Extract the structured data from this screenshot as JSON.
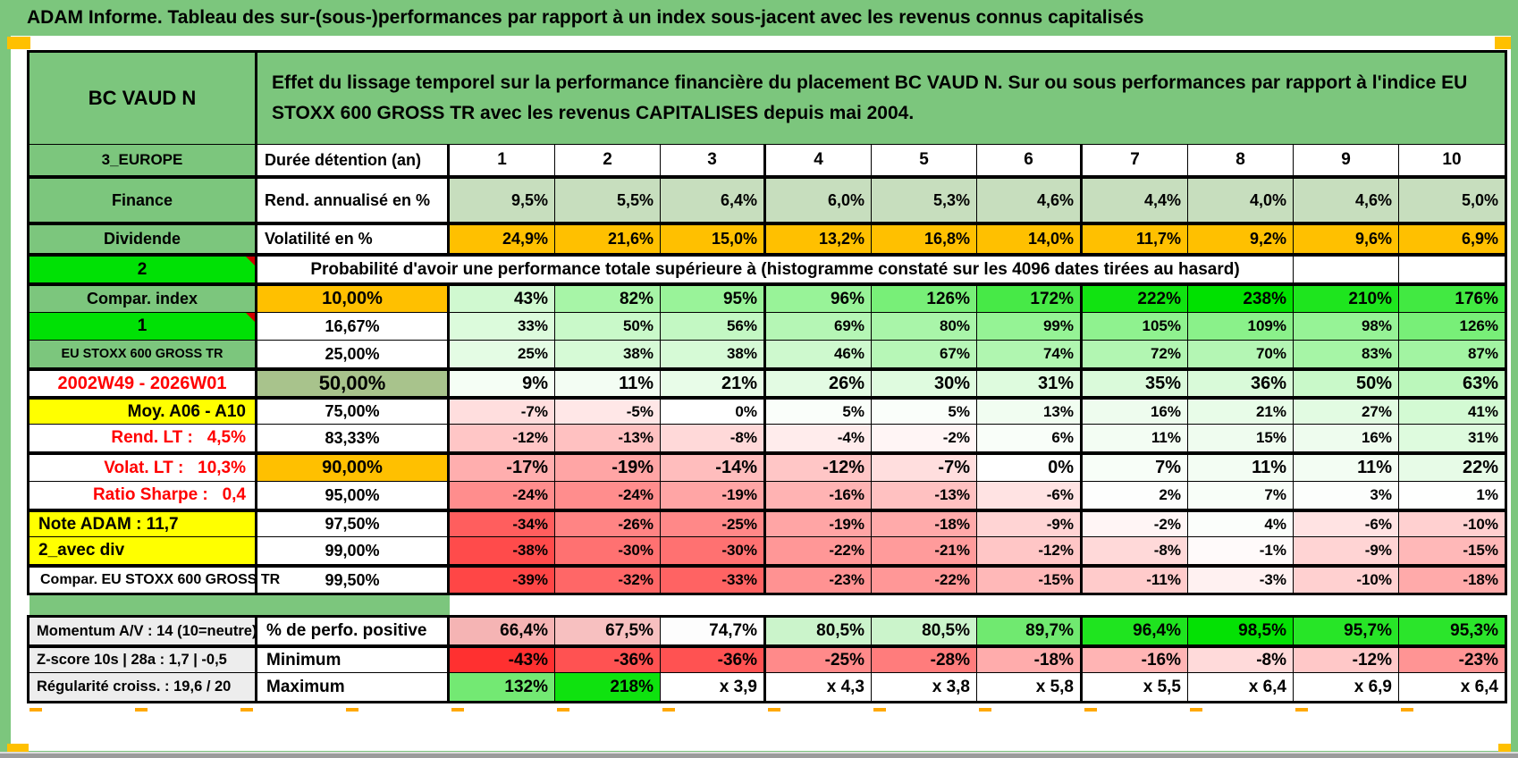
{
  "app": {
    "title": "ADAM Informe. Tableau des sur-(sous-)performances par rapport à un index sous-jacent avec les revenus connus capitalisés"
  },
  "colors": {
    "frame_green": "#7CC67D",
    "bright_green": "#00E105",
    "orange": "#FFC000",
    "yellow": "#FFFF00",
    "sage_green": "#A8C38C",
    "rend_row_green": "#C7DEBE",
    "label_gray": "#EDEDED",
    "red_text": "#FF0000",
    "comment_marker": "#D00000",
    "pagebreak_orange": "#FFA800"
  },
  "sheet": {
    "fund_name": "BC VAUD N",
    "description": "Effet du lissage temporel sur la performance financière du placement BC VAUD N. Sur ou sous performances par rapport à l'indice EU STOXX 600 GROSS TR avec les revenus CAPITALISES depuis mai 2004.",
    "columns": [
      "1",
      "2",
      "3",
      "4",
      "5",
      "6",
      "7",
      "8",
      "9",
      "10"
    ],
    "rows": [
      {
        "id": "duration",
        "a": {
          "t": "3_EUROPE",
          "bg": "#7CC67D"
        },
        "b": {
          "t": "Durée détention (an)",
          "align": "left"
        },
        "values": [
          "1",
          "2",
          "3",
          "4",
          "5",
          "6",
          "7",
          "8",
          "9",
          "10"
        ],
        "bgs": [
          "#FFFFFF",
          "#FFFFFF",
          "#FFFFFF",
          "#FFFFFF",
          "#FFFFFF",
          "#FFFFFF",
          "#FFFFFF",
          "#FFFFFF",
          "#FFFFFF",
          "#FFFFFF"
        ]
      },
      {
        "id": "rend",
        "tt": true,
        "a": {
          "t": "Finance",
          "bg": "#7CC67D"
        },
        "b": {
          "t": "Rend. annualisé en %",
          "align": "left"
        },
        "values": [
          "9,5%",
          "5,5%",
          "6,4%",
          "6,0%",
          "5,3%",
          "4,6%",
          "4,4%",
          "4,0%",
          "4,6%",
          "5,0%"
        ],
        "bgs": [
          "#C7DEBE",
          "#C7DEBE",
          "#C7DEBE",
          "#C7DEBE",
          "#C7DEBE",
          "#C7DEBE",
          "#C7DEBE",
          "#C7DEBE",
          "#C7DEBE",
          "#C7DEBE"
        ]
      },
      {
        "id": "volat",
        "tt": true,
        "a": {
          "t": "Dividende",
          "bg": "#7CC67D"
        },
        "b": {
          "t": "Volatilité en %",
          "align": "left"
        },
        "values": [
          "24,9%",
          "21,6%",
          "15,0%",
          "13,2%",
          "16,8%",
          "14,0%",
          "11,7%",
          "9,2%",
          "9,6%",
          "6,9%"
        ],
        "bgs": [
          "#FFC000",
          "#FFC000",
          "#FFC000",
          "#FFC000",
          "#FFC000",
          "#FFC000",
          "#FFC000",
          "#FFC000",
          "#FFC000",
          "#FFC000"
        ]
      },
      {
        "id": "proba",
        "type": "span8",
        "tt": true,
        "a": {
          "t": "2",
          "bg": "#00E105",
          "corner": true
        },
        "span": {
          "t": "Probabilité d'avoir une performance totale supérieure à (histogramme constaté sur les 4096 dates tirées au hasard)"
        }
      },
      {
        "id": "p10",
        "tt": true,
        "a": {
          "t": "Compar. index",
          "bg": "#7CC67D"
        },
        "b": {
          "t": "10,00%",
          "bg": "#FFC000"
        },
        "values": [
          "43%",
          "82%",
          "95%",
          "96%",
          "126%",
          "172%",
          "222%",
          "238%",
          "210%",
          "176%"
        ],
        "bgs": [
          "#D0F9D0",
          "#A7F5A7",
          "#99F399",
          "#98F398",
          "#78EF78",
          "#47E947",
          "#11E311",
          "#00E100",
          "#1EE51E",
          "#42E942"
        ]
      },
      {
        "id": "p16",
        "a": {
          "t": "1",
          "bg": "#00E105",
          "corner": true
        },
        "b": {
          "t": "16,67%"
        },
        "values": [
          "33%",
          "50%",
          "56%",
          "69%",
          "80%",
          "99%",
          "105%",
          "109%",
          "98%",
          "126%"
        ],
        "bgs": [
          "#DCFBDC",
          "#C9F9C9",
          "#C3F8C3",
          "#B5F6B5",
          "#A9F5A9",
          "#95F395",
          "#8FF28F",
          "#8AF18A",
          "#96F396",
          "#78EF78"
        ]
      },
      {
        "id": "p25",
        "a": {
          "t": "EU STOXX 600 GROSS TR",
          "bg": "#7CC67D"
        },
        "b": {
          "t": "25,00%"
        },
        "values": [
          "25%",
          "38%",
          "38%",
          "46%",
          "67%",
          "74%",
          "72%",
          "70%",
          "83%",
          "87%"
        ],
        "bgs": [
          "#E4FCE4",
          "#D6FAD6",
          "#D6FAD6",
          "#CEF9CE",
          "#B7F7B7",
          "#B0F6B0",
          "#B2F6B2",
          "#B4F6B4",
          "#A6F5A6",
          "#A2F4A2"
        ]
      },
      {
        "id": "p50",
        "tt": true,
        "a": {
          "t": "2002W49 - 2026W01",
          "fg": "#FF0000"
        },
        "b": {
          "t": "50,00%",
          "bg": "#A8C38C"
        },
        "values": [
          "9%",
          "11%",
          "21%",
          "26%",
          "30%",
          "31%",
          "35%",
          "36%",
          "50%",
          "63%"
        ],
        "bgs": [
          "#F5FEF5",
          "#F3FDF3",
          "#E8FCE8",
          "#E3FBE3",
          "#DFFBDF",
          "#DEFBDE",
          "#DAFADA",
          "#D9FAD9",
          "#C9F9C9",
          "#BBF7BB"
        ]
      },
      {
        "id": "p75",
        "tt": true,
        "a": {
          "t": "Moy. A06 - A10",
          "bg": "#FFFF00",
          "align": "right"
        },
        "b": {
          "t": "75,00%"
        },
        "values": [
          "-7%",
          "-5%",
          "0%",
          "5%",
          "5%",
          "13%",
          "16%",
          "21%",
          "27%",
          "41%"
        ],
        "bgs": [
          "#FFDEDE",
          "#FFE7E7",
          "#FFFFFF",
          "#FAFEFA",
          "#FAFEFA",
          "#F1FDF1",
          "#EEFCEE",
          "#E8FCE8",
          "#E2FBE2",
          "#D3FAD3"
        ]
      },
      {
        "id": "p83",
        "a": {
          "t": "Rend. LT :   4,5%",
          "fg": "#FF0000",
          "align": "right"
        },
        "b": {
          "t": "83,33%"
        },
        "values": [
          "-12%",
          "-13%",
          "-8%",
          "-4%",
          "-2%",
          "6%",
          "11%",
          "15%",
          "16%",
          "31%"
        ],
        "bgs": [
          "#FFC6C6",
          "#FFC1C1",
          "#FFD9D9",
          "#FFECEC",
          "#FFF5F5",
          "#F9FEF9",
          "#F3FDF3",
          "#EFFCEF",
          "#EEFCEE",
          "#DEFBDE"
        ]
      },
      {
        "id": "p90",
        "tt": true,
        "a": {
          "t": "Volat. LT :   10,3%",
          "fg": "#FF0000",
          "align": "right"
        },
        "b": {
          "t": "90,00%",
          "bg": "#FFC000"
        },
        "values": [
          "-17%",
          "-19%",
          "-14%",
          "-12%",
          "-7%",
          "0%",
          "7%",
          "11%",
          "11%",
          "22%"
        ],
        "bgs": [
          "#FFAEAE",
          "#FFA5A5",
          "#FFBDBD",
          "#FFC6C6",
          "#FFDEDE",
          "#FFFFFF",
          "#F8FEF8",
          "#F3FDF3",
          "#F3FDF3",
          "#E7FBE7"
        ]
      },
      {
        "id": "p95",
        "a": {
          "t": "Ratio Sharpe :   0,4",
          "fg": "#FF0000",
          "align": "right"
        },
        "b": {
          "t": "95,00%"
        },
        "values": [
          "-24%",
          "-24%",
          "-19%",
          "-16%",
          "-13%",
          "-6%",
          "2%",
          "7%",
          "3%",
          "1%"
        ],
        "bgs": [
          "#FF8D8D",
          "#FF8D8D",
          "#FFA5A5",
          "#FFB3B3",
          "#FFC1C1",
          "#FFE3E3",
          "#FDFEFD",
          "#F8FEF8",
          "#FCFEFC",
          "#FEFFFE"
        ]
      },
      {
        "id": "p975",
        "tt": true,
        "a": {
          "t": "Note ADAM : 11,7",
          "bg": "#FFFF00",
          "align": "left"
        },
        "b": {
          "t": "97,50%"
        },
        "values": [
          "-34%",
          "-26%",
          "-25%",
          "-19%",
          "-18%",
          "-9%",
          "-2%",
          "4%",
          "-6%",
          "-10%"
        ],
        "bgs": [
          "#FF5E5E",
          "#FF8484",
          "#FF8888",
          "#FFA5A5",
          "#FFAAAA",
          "#FFD4D4",
          "#FFF5F5",
          "#FBFEFB",
          "#FFE3E3",
          "#FFD0D0"
        ]
      },
      {
        "id": "p99",
        "a": {
          "t": "2_avec div",
          "bg": "#FFFF00",
          "align": "left"
        },
        "b": {
          "t": "99,00%"
        },
        "values": [
          "-38%",
          "-30%",
          "-30%",
          "-22%",
          "-21%",
          "-12%",
          "-8%",
          "-1%",
          "-9%",
          "-15%"
        ],
        "bgs": [
          "#FF4B4B",
          "#FF7171",
          "#FF7171",
          "#FF9797",
          "#FF9B9B",
          "#FFC6C6",
          "#FFD9D9",
          "#FFFAFA",
          "#FFD4D4",
          "#FFB8B8"
        ]
      },
      {
        "id": "p995",
        "tt": true,
        "a": {
          "t": "Compar. EU STOXX 600 GROSS TR",
          "align": "left"
        },
        "b": {
          "t": "99,50%"
        },
        "values": [
          "-39%",
          "-32%",
          "-33%",
          "-23%",
          "-22%",
          "-15%",
          "-11%",
          "-3%",
          "-10%",
          "-18%"
        ],
        "bgs": [
          "#FF4646",
          "#FF6767",
          "#FF6363",
          "#FF9292",
          "#FF9797",
          "#FFB8B8",
          "#FFCBCB",
          "#FFF1F1",
          "#FFD0D0",
          "#FFAAAA"
        ]
      }
    ],
    "bottom_rows": [
      {
        "id": "perf",
        "a": {
          "t": "Momentum A/V : 14 (10=neutre)",
          "bg": "#EDEDED",
          "align": "left"
        },
        "b": {
          "t": "% de perfo. positive",
          "align": "left"
        },
        "values": [
          "66,4%",
          "67,5%",
          "74,7%",
          "80,5%",
          "80,5%",
          "89,7%",
          "96,4%",
          "98,5%",
          "95,7%",
          "95,3%"
        ],
        "bgs": [
          "#F5B4B4",
          "#F7C0C0",
          "#FDFDFD",
          "#CBF4CB",
          "#CBF4CB",
          "#70E970",
          "#1FE41F",
          "#04E104",
          "#27E527",
          "#2BE52B"
        ]
      },
      {
        "id": "min",
        "tt": true,
        "a": {
          "t": "Z-score 10s | 28a : 1,7 | -0,5",
          "bg": "#EDEDED",
          "align": "left"
        },
        "b": {
          "t": "Minimum",
          "align": "left"
        },
        "values": [
          "-43%",
          "-36%",
          "-36%",
          "-25%",
          "-28%",
          "-18%",
          "-16%",
          "-8%",
          "-12%",
          "-23%"
        ],
        "bgs": [
          "#FF3030",
          "#FF5252",
          "#FF5252",
          "#FF8A8A",
          "#FF7C7C",
          "#FFACAC",
          "#FFB4B4",
          "#FFDADA",
          "#FFC8C8",
          "#FF9494"
        ]
      },
      {
        "id": "max",
        "a": {
          "t": "Régularité croiss. : 19,6 / 20",
          "bg": "#EDEDED",
          "align": "left"
        },
        "b": {
          "t": "Maximum",
          "align": "left"
        },
        "values": [
          "132%",
          "218%",
          "x 3,9",
          "x 4,3",
          "x 3,8",
          "x 5,8",
          "x 5,5",
          "x 6,4",
          "x 6,9",
          "x 6,4"
        ],
        "bgs": [
          "#73E973",
          "#0FE20F",
          "#FFFFFF",
          "#FFFFFF",
          "#FFFFFF",
          "#FFFFFF",
          "#FFFFFF",
          "#FFFFFF",
          "#FFFFFF",
          "#FFFFFF"
        ]
      }
    ]
  }
}
